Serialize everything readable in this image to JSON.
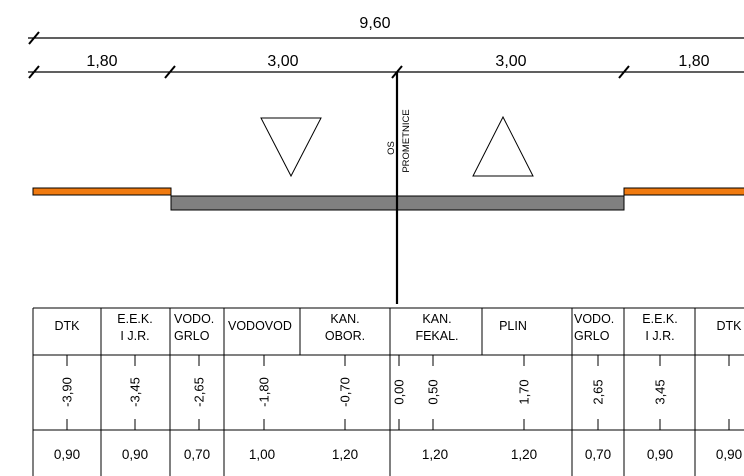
{
  "dimensions": {
    "total": "9,60",
    "left_edge": "1,80",
    "left_lane": "3,00",
    "right_lane": "3,00",
    "right_edge": "1,80"
  },
  "axis_label": {
    "line1": "OS",
    "line2": "PROMETNICE"
  },
  "colors": {
    "shoulder": "#f07a10",
    "road": "#808080",
    "line": "#000000"
  },
  "table": {
    "columns": [
      {
        "header": [
          "DTK"
        ],
        "offset": "-3,90",
        "diameter": "0,90"
      },
      {
        "header": [
          "E.E.K.",
          "I J.R."
        ],
        "offset": "-3,45",
        "diameter": "0,90"
      },
      {
        "header": [
          "VODO.",
          "GRLO"
        ],
        "offset": "-2,65",
        "diameter": "0,70"
      },
      {
        "header": [
          "VODOVOD"
        ],
        "offset": "-1,80",
        "diameter": "1,00"
      },
      {
        "header": [
          "KAN.",
          "OBOR."
        ],
        "offset": "-0,70",
        "diameter": "1,20"
      },
      {
        "header": [],
        "offset": "0,00",
        "diameter": ""
      },
      {
        "header": [
          "KAN.",
          "FEKAL."
        ],
        "offset": "0,50",
        "diameter": "1,20"
      },
      {
        "header": [
          "PLIN"
        ],
        "offset": "1,70",
        "diameter": "1,20"
      },
      {
        "header": [
          "VODO.",
          "GRLO"
        ],
        "offset": "2,65",
        "diameter": "0,70"
      },
      {
        "header": [
          "E.E.K.",
          "I J.R."
        ],
        "offset": "3,45",
        "diameter": "0,90"
      },
      {
        "header": [
          "DTK"
        ],
        "offset": "",
        "diameter": "0,90"
      }
    ]
  }
}
